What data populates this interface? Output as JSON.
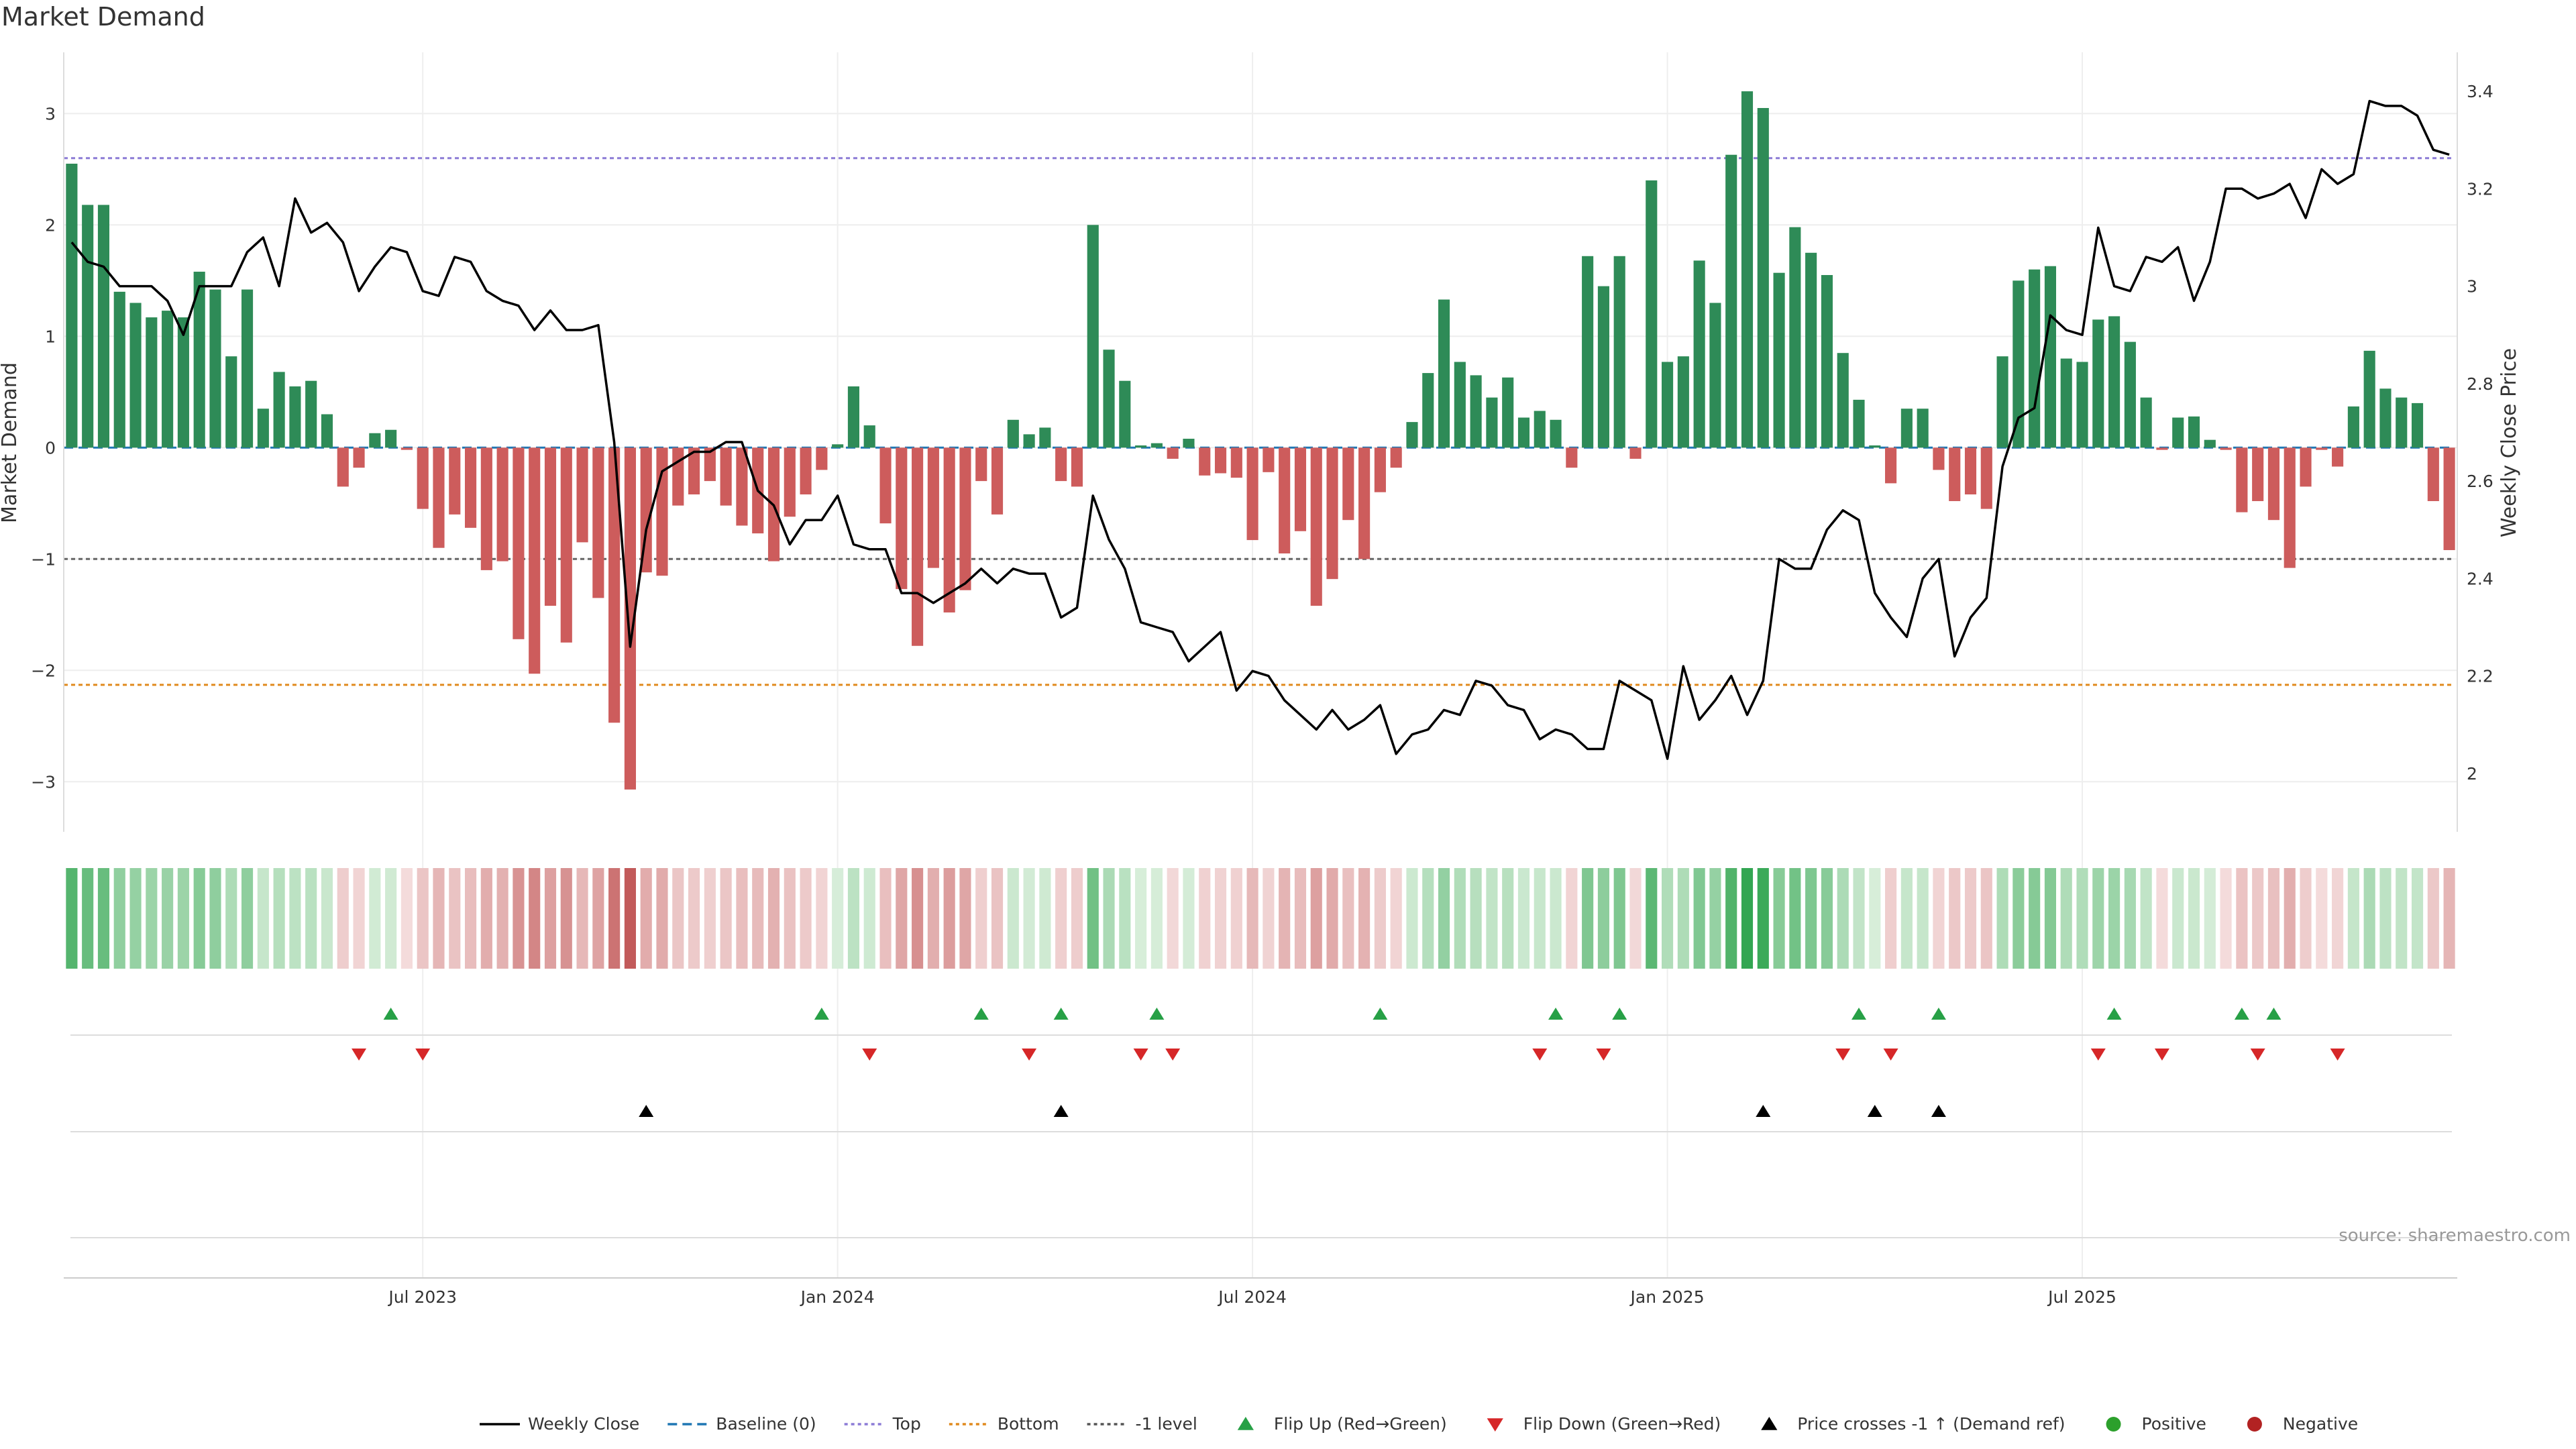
{
  "chart_data": {
    "type": "bar",
    "title": "Market Demand",
    "ylabel": "Market Demand",
    "y2label": "Weekly Close Price",
    "ylim": [
      -3.45,
      3.55
    ],
    "y2lim": [
      1.88,
      3.48
    ],
    "yticks": [
      3,
      2,
      1,
      0,
      -1,
      -2,
      -3
    ],
    "ytick_labels": [
      "3",
      "2",
      "1",
      "0",
      "−1",
      "−2",
      "−3"
    ],
    "y2ticks": [
      3.4,
      3.2,
      3,
      2.8,
      2.6,
      2.4,
      2.2,
      2
    ],
    "y2tick_labels": [
      "3.4",
      "3.2",
      "3",
      "2.8",
      "2.6",
      "2.4",
      "2.2",
      "2"
    ],
    "xticks": [
      22,
      48,
      74,
      100,
      126
    ],
    "xtick_labels": [
      "Jul 2023",
      "Jan 2024",
      "Jul 2024",
      "Jan 2025",
      "Jul 2025"
    ],
    "reference_lines": {
      "top": 2.6,
      "bottom": -2.13,
      "minus_one": -1.0,
      "baseline": 0
    },
    "demand": [
      2.55,
      2.18,
      2.18,
      1.4,
      1.3,
      1.17,
      1.23,
      1.17,
      1.58,
      1.42,
      0.82,
      1.42,
      0.35,
      0.68,
      0.55,
      0.6,
      0.3,
      -0.35,
      -0.18,
      0.13,
      0.16,
      -0.02,
      -0.55,
      -0.9,
      -0.6,
      -0.72,
      -1.1,
      -1.02,
      -1.72,
      -2.03,
      -1.42,
      -1.75,
      -0.85,
      -1.35,
      -2.47,
      -3.07,
      -1.12,
      -1.15,
      -0.52,
      -0.42,
      -0.3,
      -0.52,
      -0.7,
      -0.77,
      -1.02,
      -0.62,
      -0.42,
      -0.2,
      0.03,
      0.55,
      0.2,
      -0.68,
      -1.27,
      -1.78,
      -1.08,
      -1.48,
      -1.28,
      -0.3,
      -0.6,
      0.25,
      0.12,
      0.18,
      -0.3,
      -0.35,
      2.0,
      0.88,
      0.6,
      0.02,
      0.04,
      -0.1,
      0.08,
      -0.25,
      -0.23,
      -0.27,
      -0.83,
      -0.22,
      -0.95,
      -0.75,
      -1.42,
      -1.18,
      -0.65,
      -1.0,
      -0.4,
      -0.18,
      0.23,
      0.67,
      1.33,
      0.77,
      0.65,
      0.45,
      0.63,
      0.27,
      0.33,
      0.25,
      -0.18,
      1.72,
      1.45,
      1.72,
      -0.1,
      2.4,
      0.77,
      0.82,
      1.68,
      1.3,
      2.63,
      3.2,
      3.05,
      1.57,
      1.98,
      1.75,
      1.55,
      0.85,
      0.43,
      0.02,
      -0.32,
      0.35,
      0.35,
      -0.2,
      -0.48,
      -0.42,
      -0.55,
      0.82,
      1.5,
      1.6,
      1.63,
      0.8,
      0.77,
      1.15,
      1.18,
      0.95,
      0.45,
      -0.02,
      0.27,
      0.28,
      0.07,
      -0.02,
      -0.58,
      -0.48,
      -0.65,
      -1.08,
      -0.35,
      -0.02,
      -0.17,
      0.37,
      0.87,
      0.53,
      0.45,
      0.4,
      -0.48,
      -0.92
    ],
    "close": [
      3.09,
      3.05,
      3.04,
      3.0,
      3.0,
      3.0,
      2.97,
      2.9,
      3.0,
      3.0,
      3.0,
      3.07,
      3.1,
      3.0,
      3.18,
      3.11,
      3.13,
      3.09,
      2.99,
      3.04,
      3.08,
      3.07,
      2.99,
      2.98,
      3.06,
      3.05,
      2.99,
      2.97,
      2.96,
      2.91,
      2.95,
      2.91,
      2.91,
      2.92,
      2.68,
      2.26,
      2.5,
      2.62,
      2.64,
      2.66,
      2.66,
      2.68,
      2.68,
      2.58,
      2.55,
      2.47,
      2.52,
      2.52,
      2.57,
      2.47,
      2.46,
      2.46,
      2.37,
      2.37,
      2.35,
      2.37,
      2.39,
      2.42,
      2.39,
      2.42,
      2.41,
      2.41,
      2.32,
      2.34,
      2.57,
      2.48,
      2.42,
      2.31,
      2.3,
      2.29,
      2.23,
      2.26,
      2.29,
      2.17,
      2.21,
      2.2,
      2.15,
      2.12,
      2.09,
      2.13,
      2.09,
      2.11,
      2.14,
      2.04,
      2.08,
      2.09,
      2.13,
      2.12,
      2.19,
      2.18,
      2.14,
      2.13,
      2.07,
      2.09,
      2.08,
      2.05,
      2.05,
      2.19,
      2.17,
      2.15,
      2.03,
      2.22,
      2.11,
      2.15,
      2.2,
      2.12,
      2.19,
      2.44,
      2.42,
      2.42,
      2.5,
      2.54,
      2.52,
      2.37,
      2.32,
      2.28,
      2.4,
      2.44,
      2.24,
      2.32,
      2.36,
      2.63,
      2.73,
      2.75,
      2.94,
      2.91,
      2.9,
      3.12,
      3.0,
      2.99,
      3.06,
      3.05,
      3.08,
      2.97,
      3.05,
      3.2,
      3.2,
      3.18,
      3.19,
      3.21,
      3.14,
      3.24,
      3.21,
      3.23,
      3.38,
      3.37,
      3.37,
      3.35,
      3.28,
      3.27
    ],
    "flip_up": [
      20,
      47,
      57,
      62,
      68,
      82,
      93,
      97,
      112,
      117,
      128,
      136,
      138
    ],
    "flip_down": [
      18,
      22,
      50,
      60,
      67,
      69,
      92,
      96,
      111,
      114,
      127,
      131,
      137,
      142
    ],
    "price_crosses": [
      36,
      62,
      106,
      113,
      117
    ],
    "legend": [
      {
        "label": "Weekly Close",
        "symbol": "line",
        "color": "#000000"
      },
      {
        "label": "Baseline (0)",
        "symbol": "dash",
        "color": "#1f77b4"
      },
      {
        "label": "Top",
        "symbol": "dot",
        "color": "#8c7bd6"
      },
      {
        "label": "Bottom",
        "symbol": "dot",
        "color": "#e08a1e"
      },
      {
        "label": "-1 level",
        "symbol": "dot",
        "color": "#555555"
      },
      {
        "label": "Flip Up (Red→Green)",
        "symbol": "tri-up",
        "color": "#27a046"
      },
      {
        "label": "Flip Down (Green→Red)",
        "symbol": "tri-down",
        "color": "#d62728"
      },
      {
        "label": "Price crosses -1 ↑ (Demand ref)",
        "symbol": "tri-up",
        "color": "#000000"
      },
      {
        "label": "Positive",
        "symbol": "circle",
        "color": "#2ca02c"
      },
      {
        "label": "Negative",
        "symbol": "circle",
        "color": "#b22222"
      }
    ],
    "source": "source: sharemaestro.com"
  },
  "colors": {
    "positive_bar": "#2e8b57",
    "negative_bar": "#cd5c5c",
    "close_line": "#000000",
    "top_line": "#8c7bd6",
    "bottom_line": "#e08a1e",
    "minus_one_line": "#666666",
    "baseline": "#1f77b4",
    "flip_up": "#27a046",
    "flip_down": "#d62728",
    "cross": "#000000"
  }
}
